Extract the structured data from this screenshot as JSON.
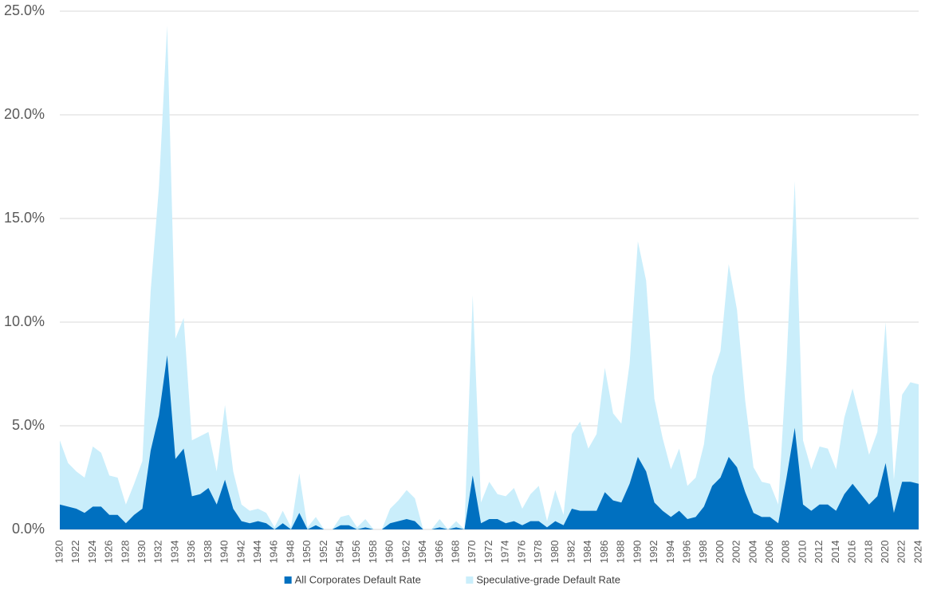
{
  "chart_data": {
    "type": "area",
    "categories": [
      "1920",
      null,
      "1922",
      null,
      "1924",
      null,
      "1926",
      null,
      "1928",
      null,
      "1930",
      null,
      "1932",
      null,
      "1934",
      null,
      "1936",
      null,
      "1938",
      null,
      "1940",
      null,
      "1942",
      null,
      "1944",
      null,
      "1946",
      null,
      "1948",
      null,
      "1950",
      null,
      "1952",
      null,
      "1954",
      null,
      "1956",
      null,
      "1958",
      null,
      "1960",
      null,
      "1962",
      null,
      "1964",
      null,
      "1966",
      null,
      "1968",
      null,
      "1970",
      null,
      "1972",
      null,
      "1974",
      null,
      "1976",
      null,
      "1978",
      null,
      "1980",
      null,
      "1982",
      null,
      "1984",
      null,
      "1986",
      null,
      "1988",
      null,
      "1990",
      null,
      "1992",
      null,
      "1994",
      null,
      "1996",
      null,
      "1998",
      null,
      "2000",
      null,
      "2002",
      null,
      "2004",
      null,
      "2006",
      null,
      "2008",
      null,
      "2010",
      null,
      "2012",
      null,
      "2014",
      null,
      "2016",
      null,
      "2018",
      null,
      "2020",
      null,
      "2022",
      null,
      "2024"
    ],
    "series": [
      {
        "name": "All Corporates Default Rate",
        "color": "#0070c0",
        "values": [
          1.2,
          1.1,
          1.0,
          0.8,
          1.1,
          1.1,
          0.7,
          0.7,
          0.3,
          0.7,
          1.0,
          3.8,
          5.5,
          8.4,
          3.4,
          3.9,
          1.6,
          1.7,
          2.0,
          1.2,
          2.4,
          1.0,
          0.4,
          0.3,
          0.4,
          0.3,
          0.0,
          0.3,
          0.0,
          0.8,
          0.0,
          0.2,
          0.0,
          0.0,
          0.2,
          0.2,
          0.0,
          0.1,
          0.0,
          0.0,
          0.3,
          0.4,
          0.5,
          0.4,
          0.0,
          0.0,
          0.1,
          0.0,
          0.1,
          0.0,
          2.6,
          0.3,
          0.5,
          0.5,
          0.3,
          0.4,
          0.2,
          0.4,
          0.4,
          0.1,
          0.4,
          0.2,
          1.0,
          0.9,
          0.9,
          0.9,
          1.8,
          1.4,
          1.3,
          2.2,
          3.5,
          2.8,
          1.3,
          0.9,
          0.6,
          0.9,
          0.5,
          0.6,
          1.1,
          2.1,
          2.5,
          3.5,
          3.0,
          1.8,
          0.8,
          0.6,
          0.6,
          0.3,
          2.5,
          4.9,
          1.2,
          0.9,
          1.2,
          1.2,
          0.9,
          1.7,
          2.2,
          1.7,
          1.2,
          1.6,
          3.2,
          0.8,
          2.3,
          2.3,
          2.2
        ]
      },
      {
        "name": "Speculative-grade Default Rate",
        "color": "#caeefb",
        "values": [
          4.3,
          3.2,
          2.8,
          2.5,
          4.0,
          3.7,
          2.6,
          2.5,
          1.2,
          2.2,
          3.3,
          11.5,
          16.5,
          24.3,
          9.2,
          10.2,
          4.3,
          4.5,
          4.7,
          2.8,
          6.0,
          2.8,
          1.2,
          0.9,
          1.0,
          0.8,
          0.1,
          0.9,
          0.1,
          2.7,
          0.1,
          0.6,
          0.0,
          0.0,
          0.6,
          0.7,
          0.1,
          0.5,
          0.0,
          0.0,
          1.0,
          1.4,
          1.9,
          1.5,
          0.0,
          0.0,
          0.5,
          0.0,
          0.4,
          0.0,
          11.3,
          1.3,
          2.3,
          1.7,
          1.6,
          2.0,
          1.0,
          1.7,
          2.1,
          0.4,
          1.9,
          0.7,
          4.6,
          5.2,
          3.9,
          4.6,
          7.8,
          5.6,
          5.1,
          8.0,
          13.9,
          12.0,
          6.3,
          4.4,
          2.9,
          3.9,
          2.1,
          2.5,
          4.1,
          7.4,
          8.6,
          12.8,
          10.6,
          6.2,
          3.0,
          2.3,
          2.2,
          1.2,
          8.0,
          16.8,
          4.3,
          2.9,
          4.0,
          3.9,
          2.9,
          5.4,
          6.8,
          5.2,
          3.6,
          4.7,
          10.0,
          2.4,
          6.5,
          7.1,
          7.0
        ]
      }
    ],
    "ylim": [
      0,
      25
    ],
    "yticks": [
      {
        "value": 0,
        "label": "0.0%"
      },
      {
        "value": 5,
        "label": "5.0%"
      },
      {
        "value": 10,
        "label": "10.0%"
      },
      {
        "value": 15,
        "label": "15.0%"
      },
      {
        "value": 20,
        "label": "20.0%"
      },
      {
        "value": 25,
        "label": "25.0%"
      }
    ],
    "grid": true,
    "legend": "bottom"
  }
}
